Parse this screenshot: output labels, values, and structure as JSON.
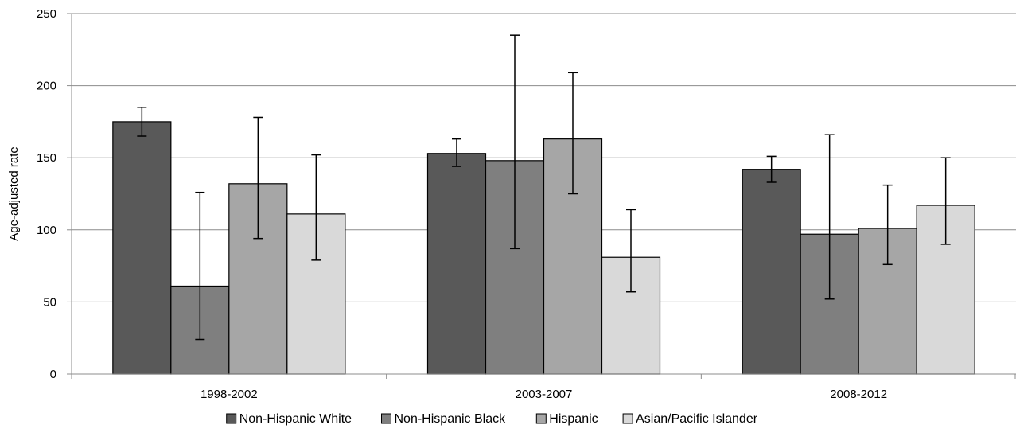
{
  "chart_data": {
    "type": "bar",
    "title": "",
    "xlabel": "",
    "ylabel": "Age-adjusted rate",
    "ylim": [
      0,
      250
    ],
    "yticks": [
      0,
      50,
      100,
      150,
      200,
      250
    ],
    "grid": true,
    "legend": "bottom",
    "categories": [
      "1998-2002",
      "2003-2007",
      "2008-2012"
    ],
    "series": [
      {
        "name": "Non-Hispanic White",
        "color": "#595959",
        "values": [
          175,
          153,
          142
        ],
        "err_low": [
          165,
          144,
          133
        ],
        "err_high": [
          185,
          163,
          151
        ]
      },
      {
        "name": "Non-Hispanic Black",
        "color": "#7f7f7f",
        "values": [
          61,
          148,
          97
        ],
        "err_low": [
          24,
          87,
          52
        ],
        "err_high": [
          126,
          235,
          166
        ]
      },
      {
        "name": "Hispanic",
        "color": "#a6a6a6",
        "values": [
          132,
          163,
          101
        ],
        "err_low": [
          94,
          125,
          76
        ],
        "err_high": [
          178,
          209,
          131
        ]
      },
      {
        "name": "Asian/Pacific Islander",
        "color": "#d9d9d9",
        "values": [
          111,
          81,
          117
        ],
        "err_low": [
          79,
          57,
          90
        ],
        "err_high": [
          152,
          114,
          150
        ]
      }
    ]
  }
}
